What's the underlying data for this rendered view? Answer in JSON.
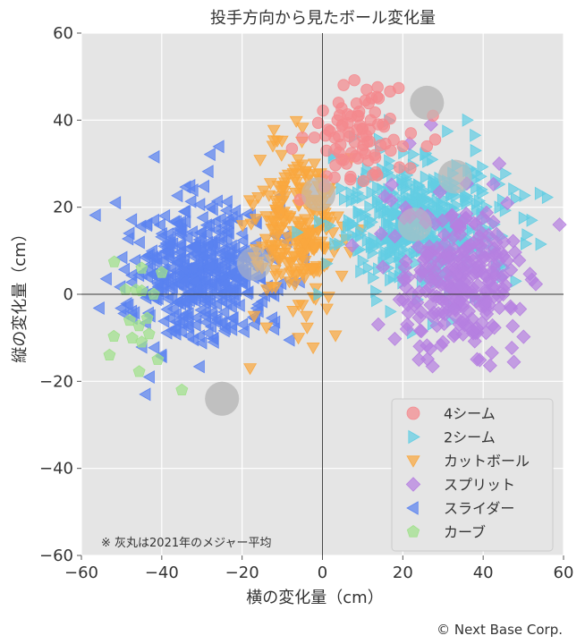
{
  "chart_data": {
    "type": "scatter",
    "title": "投手方向から見たボール変化量",
    "xlabel": "横の変化量（cm）",
    "ylabel": "縦の変化量（cm）",
    "xlim": [
      -60,
      60
    ],
    "ylim": [
      -60,
      60
    ],
    "x_ticks": [
      "−60",
      "−40",
      "−20",
      "0",
      "20",
      "40",
      "60"
    ],
    "y_ticks": [
      "60",
      "40",
      "20",
      "0",
      "−20",
      "−40",
      "−60"
    ],
    "grid": true,
    "legend_position": "bottom-right",
    "note": "※ 灰丸は2021年のメジャー平均",
    "credit": "© Next Base Corp.",
    "series": [
      {
        "name": "4シーム",
        "marker": "circle",
        "color": "#f4898e",
        "center": [
          8,
          36
        ],
        "spread": [
          6,
          7
        ],
        "count": 70,
        "points": [
          [
            11,
            47
          ],
          [
            14,
            45
          ],
          [
            12,
            40
          ],
          [
            8,
            35
          ],
          [
            3,
            36
          ],
          [
            -5,
            36
          ],
          [
            -2,
            36
          ],
          [
            6,
            30
          ],
          [
            4,
            44
          ],
          [
            10,
            38
          ],
          [
            17,
            33
          ],
          [
            22,
            37
          ],
          [
            9,
            41
          ],
          [
            1,
            33
          ],
          [
            15,
            39
          ],
          [
            7,
            27
          ],
          [
            13,
            32
          ],
          [
            20,
            34
          ],
          [
            26,
            34
          ],
          [
            5,
            39
          ]
        ],
        "league_avg": [
          26,
          44
        ]
      },
      {
        "name": "2シーム",
        "marker": "triangle-right",
        "color": "#62cde3",
        "center": [
          24,
          17
        ],
        "spread": [
          11,
          8
        ],
        "count": 420,
        "points": [
          [
            36,
            40
          ],
          [
            38,
            33
          ],
          [
            52,
            17
          ],
          [
            48,
            3
          ],
          [
            40,
            11
          ],
          [
            20,
            25
          ],
          [
            31,
            26
          ],
          [
            12,
            11
          ],
          [
            28,
            6
          ],
          [
            44,
            20
          ],
          [
            -1,
            0
          ],
          [
            16,
            19
          ]
        ],
        "league_avg": [
          23,
          16
        ]
      },
      {
        "name": "カットボール",
        "marker": "triangle-down",
        "color": "#f9a73e",
        "center": [
          -6,
          15
        ],
        "spread": [
          5,
          9
        ],
        "count": 230,
        "points": [
          [
            -18,
            -17
          ],
          [
            -17,
            -5
          ],
          [
            -6,
            -10
          ],
          [
            -4,
            -5
          ],
          [
            -11,
            20
          ],
          [
            -2,
            30
          ],
          [
            0,
            23
          ],
          [
            -8,
            5
          ],
          [
            -13,
            10
          ],
          [
            -4,
            14
          ]
        ],
        "league_avg": [
          -1,
          23
        ]
      },
      {
        "name": "スプリット",
        "marker": "diamond",
        "color": "#b57fe0",
        "center": [
          34,
          3
        ],
        "spread": [
          8,
          9
        ],
        "count": 260,
        "points": [
          [
            59,
            16
          ],
          [
            45,
            0
          ],
          [
            27,
            39
          ],
          [
            21,
            -8
          ],
          [
            24,
            -15
          ],
          [
            44,
            30
          ],
          [
            30,
            -11
          ],
          [
            38,
            6
          ],
          [
            32,
            18
          ]
        ],
        "league_avg": [
          33,
          27
        ]
      },
      {
        "name": "スライダー",
        "marker": "triangle-left",
        "color": "#5a82f0",
        "center": [
          -30,
          5
        ],
        "spread": [
          9,
          8
        ],
        "count": 440,
        "points": [
          [
            -44,
            -23
          ],
          [
            -43,
            -19
          ],
          [
            -48,
            14
          ],
          [
            -40,
            -14
          ],
          [
            -27,
            -11
          ],
          [
            -12,
            -8
          ],
          [
            -34,
            19
          ],
          [
            -20,
            10
          ],
          [
            -25,
            0
          ]
        ],
        "league_avg": [
          -17,
          7
        ]
      },
      {
        "name": "カーブ",
        "marker": "pentagon",
        "color": "#9fe08a",
        "center": [
          -45,
          -5
        ],
        "spread": [
          5,
          6
        ],
        "count": 9,
        "points": [
          [
            -53,
            -14
          ],
          [
            -35,
            -22
          ],
          [
            -45,
            -11
          ],
          [
            -41,
            -15
          ],
          [
            -49,
            1
          ],
          [
            -45,
            6
          ],
          [
            -42,
            0
          ],
          [
            -48,
            -6
          ],
          [
            -40,
            5
          ]
        ],
        "league_avg": [
          -25,
          -24
        ]
      }
    ]
  }
}
